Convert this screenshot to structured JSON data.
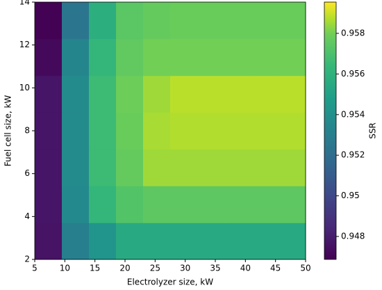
{
  "chart_data": {
    "type": "heatmap",
    "xlabel": "Electrolyzer size, kW",
    "ylabel": "Fuel cell size, kW",
    "colorbar_label": "SSR",
    "colormap": "viridis",
    "x_bins": [
      5,
      9.5,
      14,
      18.5,
      23,
      27.5,
      32,
      36.5,
      41,
      45.5,
      50
    ],
    "y_bins": [
      2,
      3.71,
      5.43,
      7.14,
      8.86,
      10.57,
      12.29,
      14
    ],
    "z": [
      [
        0.9476,
        0.953,
        0.9543,
        0.9555,
        0.9555,
        0.9555,
        0.9555,
        0.9555,
        0.9555,
        0.9555
      ],
      [
        0.9477,
        0.9536,
        0.9563,
        0.9572,
        0.9575,
        0.9575,
        0.9575,
        0.9575,
        0.9575,
        0.9575
      ],
      [
        0.9477,
        0.9537,
        0.9566,
        0.9577,
        0.9585,
        0.9585,
        0.9585,
        0.9585,
        0.9585,
        0.9585
      ],
      [
        0.9477,
        0.9537,
        0.9566,
        0.9578,
        0.9586,
        0.9587,
        0.9587,
        0.9587,
        0.9587,
        0.9587
      ],
      [
        0.9477,
        0.9537,
        0.9566,
        0.9579,
        0.9585,
        0.9588,
        0.9588,
        0.9588,
        0.9588,
        0.9588
      ],
      [
        0.9472,
        0.9534,
        0.9563,
        0.9576,
        0.958,
        0.958,
        0.958,
        0.958,
        0.958,
        0.958
      ],
      [
        0.9469,
        0.9525,
        0.9558,
        0.9574,
        0.9577,
        0.9578,
        0.9578,
        0.9578,
        0.9578,
        0.9578
      ]
    ],
    "xlim": [
      5,
      50
    ],
    "ylim": [
      2,
      14
    ],
    "xticks": [
      5,
      10,
      15,
      20,
      25,
      30,
      35,
      40,
      45,
      50
    ],
    "yticks": [
      2,
      4,
      6,
      8,
      10,
      12,
      14
    ],
    "clim": [
      0.94687,
      0.95954
    ],
    "cticks": [
      0.948,
      0.95,
      0.952,
      0.954,
      0.956,
      0.958
    ]
  }
}
